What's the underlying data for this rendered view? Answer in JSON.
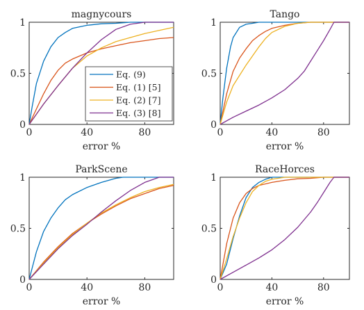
{
  "chart_data": [
    {
      "type": "line",
      "title": "magnycours",
      "xlabel": "error %",
      "ylabel": "",
      "xlim": [
        0,
        100
      ],
      "ylim": [
        0,
        1
      ],
      "xticks": [
        "0",
        "40",
        "80"
      ],
      "yticks": [
        "0",
        "0.5",
        "1"
      ],
      "legend": {
        "position": "lower-right",
        "entries": [
          "Eq. (9)",
          "Eq. (1) [5]",
          "Eq. (2) [7]",
          "Eq. (3) [8]"
        ]
      },
      "series": [
        {
          "name": "Eq. (9)",
          "color": "#0072BD",
          "x": [
            0,
            2,
            5,
            10,
            15,
            20,
            25,
            30,
            40,
            50,
            60,
            70,
            80,
            100
          ],
          "y": [
            0,
            0.17,
            0.4,
            0.62,
            0.76,
            0.85,
            0.9,
            0.94,
            0.97,
            0.985,
            0.99,
            1.0,
            1.0,
            1.0
          ]
        },
        {
          "name": "Eq. (1) [5]",
          "color": "#D95319",
          "x": [
            0,
            5,
            10,
            15,
            20,
            25,
            30,
            40,
            50,
            60,
            70,
            80,
            90,
            100
          ],
          "y": [
            0,
            0.15,
            0.3,
            0.43,
            0.53,
            0.6,
            0.64,
            0.7,
            0.74,
            0.77,
            0.8,
            0.82,
            0.84,
            0.85
          ]
        },
        {
          "name": "Eq. (2) [7]",
          "color": "#EDB120",
          "x": [
            0,
            10,
            20,
            30,
            40,
            50,
            60,
            70,
            80,
            90,
            100
          ],
          "y": [
            0,
            0.2,
            0.38,
            0.55,
            0.67,
            0.75,
            0.81,
            0.85,
            0.89,
            0.92,
            0.95
          ]
        },
        {
          "name": "Eq. (3) [8]",
          "color": "#7E2F8E",
          "x": [
            0,
            10,
            20,
            30,
            40,
            50,
            60,
            70,
            80,
            100
          ],
          "y": [
            0,
            0.2,
            0.38,
            0.55,
            0.7,
            0.83,
            0.93,
            0.98,
            1.0,
            1.0
          ]
        }
      ]
    },
    {
      "type": "line",
      "title": "Tango",
      "xlabel": "error %",
      "ylabel": "",
      "xlim": [
        0,
        100
      ],
      "ylim": [
        0,
        1
      ],
      "xticks": [
        "0",
        "40",
        "80"
      ],
      "yticks": [
        "0",
        "0.5",
        "1"
      ],
      "series": [
        {
          "name": "Eq. (9)",
          "color": "#0072BD",
          "x": [
            0,
            2,
            5,
            8,
            10,
            15,
            20,
            25,
            30,
            40,
            100
          ],
          "y": [
            0,
            0.25,
            0.55,
            0.76,
            0.85,
            0.95,
            0.98,
            0.99,
            1.0,
            1.0,
            1.0
          ]
        },
        {
          "name": "Eq. (1) [5]",
          "color": "#D95319",
          "x": [
            0,
            5,
            10,
            15,
            20,
            25,
            30,
            35,
            40,
            50,
            60,
            70,
            80,
            100
          ],
          "y": [
            0,
            0.3,
            0.52,
            0.65,
            0.74,
            0.82,
            0.87,
            0.91,
            0.94,
            0.97,
            0.99,
            1.0,
            1.0,
            1.0
          ]
        },
        {
          "name": "Eq. (2) [7]",
          "color": "#EDB120",
          "x": [
            0,
            5,
            10,
            15,
            20,
            25,
            30,
            35,
            40,
            50,
            60,
            70,
            80,
            100
          ],
          "y": [
            0,
            0.22,
            0.38,
            0.48,
            0.58,
            0.67,
            0.76,
            0.84,
            0.9,
            0.96,
            0.99,
            1.0,
            1.0,
            1.0
          ]
        },
        {
          "name": "Eq. (3) [8]",
          "color": "#7E2F8E",
          "x": [
            0,
            10,
            20,
            30,
            40,
            50,
            60,
            65,
            70,
            75,
            80,
            85,
            88,
            90,
            100
          ],
          "y": [
            0,
            0.07,
            0.13,
            0.19,
            0.26,
            0.34,
            0.45,
            0.52,
            0.62,
            0.72,
            0.82,
            0.93,
            1.0,
            1.0,
            1.0
          ]
        }
      ]
    },
    {
      "type": "line",
      "title": "ParkScene",
      "xlabel": "error %",
      "ylabel": "",
      "xlim": [
        0,
        100
      ],
      "ylim": [
        0,
        1
      ],
      "xticks": [
        "0",
        "40",
        "80"
      ],
      "yticks": [
        "0",
        "0.5",
        "1"
      ],
      "series": [
        {
          "name": "Eq. (9)",
          "color": "#0072BD",
          "x": [
            0,
            5,
            10,
            15,
            20,
            25,
            30,
            40,
            50,
            60,
            65,
            100
          ],
          "y": [
            0,
            0.27,
            0.47,
            0.6,
            0.7,
            0.78,
            0.83,
            0.9,
            0.95,
            0.99,
            1.0,
            1.0
          ]
        },
        {
          "name": "Eq. (1) [5]",
          "color": "#D95319",
          "x": [
            0,
            10,
            20,
            30,
            40,
            50,
            60,
            70,
            80,
            90,
            100
          ],
          "y": [
            0,
            0.17,
            0.32,
            0.45,
            0.55,
            0.64,
            0.72,
            0.79,
            0.84,
            0.89,
            0.92
          ]
        },
        {
          "name": "Eq. (2) [7]",
          "color": "#EDB120",
          "x": [
            0,
            10,
            20,
            30,
            40,
            50,
            60,
            70,
            80,
            90,
            100
          ],
          "y": [
            0,
            0.16,
            0.31,
            0.44,
            0.55,
            0.65,
            0.73,
            0.8,
            0.86,
            0.9,
            0.93
          ]
        },
        {
          "name": "Eq. (3) [8]",
          "color": "#7E2F8E",
          "x": [
            0,
            10,
            20,
            30,
            40,
            50,
            60,
            70,
            80,
            90,
            100
          ],
          "y": [
            0,
            0.15,
            0.3,
            0.43,
            0.54,
            0.66,
            0.77,
            0.87,
            0.95,
            1.0,
            1.0
          ]
        }
      ]
    },
    {
      "type": "line",
      "title": "RaceHorces",
      "xlabel": "error %",
      "ylabel": "",
      "xlim": [
        0,
        100
      ],
      "ylim": [
        0,
        1
      ],
      "xticks": [
        "0",
        "40",
        "80"
      ],
      "yticks": [
        "0",
        "0.5",
        "1"
      ],
      "series": [
        {
          "name": "Eq. (9)",
          "color": "#0072BD",
          "x": [
            0,
            5,
            10,
            15,
            20,
            25,
            30,
            35,
            40,
            50,
            100
          ],
          "y": [
            0,
            0.15,
            0.4,
            0.62,
            0.8,
            0.9,
            0.95,
            0.98,
            1.0,
            1.0,
            1.0
          ]
        },
        {
          "name": "Eq. (1) [5]",
          "color": "#D95319",
          "x": [
            0,
            5,
            10,
            15,
            20,
            25,
            30,
            40,
            50,
            60,
            70,
            80,
            100
          ],
          "y": [
            0,
            0.35,
            0.6,
            0.75,
            0.84,
            0.89,
            0.92,
            0.95,
            0.97,
            0.985,
            0.99,
            1.0,
            1.0
          ]
        },
        {
          "name": "Eq. (2) [7]",
          "color": "#EDB120",
          "x": [
            0,
            5,
            10,
            15,
            20,
            25,
            30,
            35,
            40,
            50,
            100
          ],
          "y": [
            0,
            0.2,
            0.42,
            0.6,
            0.75,
            0.86,
            0.92,
            0.96,
            0.98,
            1.0,
            1.0
          ]
        },
        {
          "name": "Eq. (3) [8]",
          "color": "#7E2F8E",
          "x": [
            0,
            10,
            20,
            30,
            40,
            50,
            60,
            70,
            75,
            80,
            85,
            88,
            100
          ],
          "y": [
            0,
            0.07,
            0.14,
            0.21,
            0.29,
            0.39,
            0.51,
            0.66,
            0.75,
            0.85,
            0.95,
            1.0,
            1.0
          ]
        }
      ]
    }
  ]
}
